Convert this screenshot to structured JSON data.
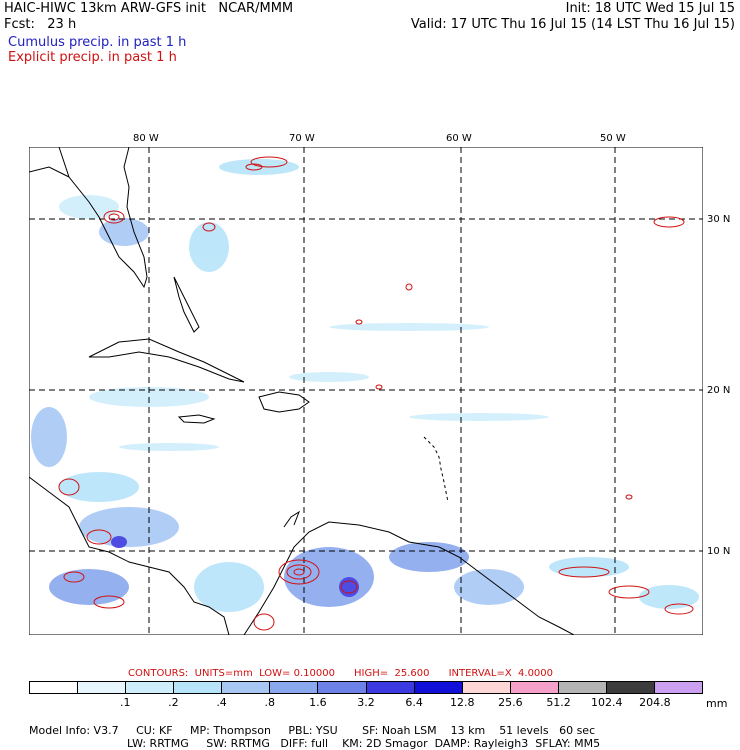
{
  "header": {
    "line1_left": "HAIC-HIWC 13km ARW-GFS init   NCAR/MMM",
    "line2_left": "Fcst:   23 h",
    "init": "Init: 18 UTC Wed 15 Jul 15",
    "valid": "Valid: 17 UTC Thu 16 Jul 15 (14 LST Thu 16 Jul 15)",
    "cumulus": "Cumulus precip. in past 1 h",
    "explicit": "Explicit precip. in past 1 h"
  },
  "map": {
    "lon_labels": [
      "80 W",
      "70 W",
      "60 W",
      "50 W"
    ],
    "lat_labels": [
      "30 N",
      "20 N",
      "10 N"
    ]
  },
  "contours_line": "CONTOURS:  UNITS=mm  LOW= 0.10000      HIGH=  25.600      INTERVAL=X  4.0000",
  "colorbar": {
    "colors": [
      "#ffffff",
      "#e8f6fe",
      "#cfeefc",
      "#b8e4fa",
      "#a8c8f4",
      "#8aa8ee",
      "#6c82e6",
      "#3a3ae0",
      "#1010d8",
      "#ffd6d6",
      "#f4a0c8",
      "#b4b4b4",
      "#3c3c3c",
      "#cca0f0"
    ],
    "ticks": [
      ".1",
      ".2",
      ".4",
      ".8",
      "1.6",
      "3.2",
      "6.4",
      "12.8",
      "25.6",
      "51.2",
      "102.4",
      "204.8"
    ],
    "units": "mm"
  },
  "model_info": {
    "line1": [
      "Model Info: V3.7",
      "CU: KF",
      "MP: Thompson",
      "PBL: YSU",
      "SF: Noah LSM",
      "13 km",
      "51 levels",
      "60 sec"
    ],
    "line2": [
      "LW: RRTMG",
      "SW: RRTMG",
      "DIFF: full",
      "KM: 2D Smagor",
      "DAMP: Rayleigh3",
      "SFLAY: MM5"
    ]
  },
  "colors": {
    "cumulus": "#2020c0",
    "explicit": "#d01010",
    "grid": "#000000"
  }
}
